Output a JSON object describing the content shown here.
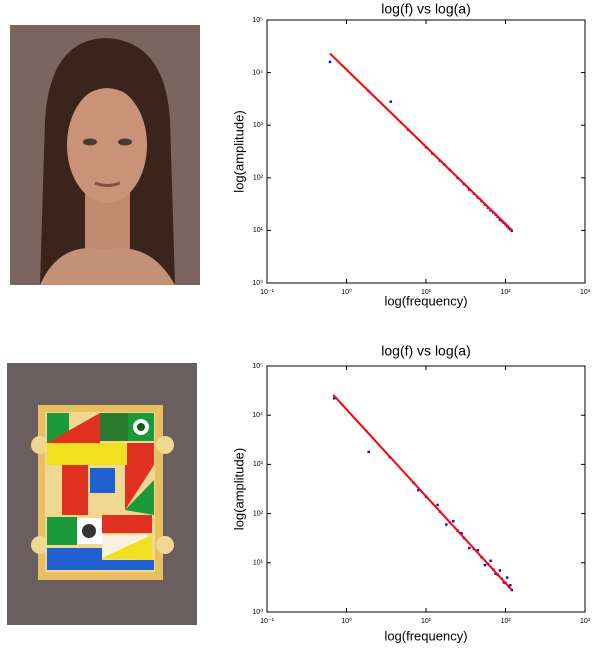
{
  "chart_data": [
    {
      "type": "scatter",
      "title": "log(f) vs log(a)",
      "x_label": "log(frequency)",
      "y_label": "log(amplitude)",
      "log_x": true,
      "log_y": true,
      "xlim": [
        0.1,
        1000
      ],
      "ylim": [
        1,
        100000
      ],
      "xticks": [
        {
          "value": 0.1,
          "label": "10⁻¹"
        },
        {
          "value": 1,
          "label": "10⁰"
        },
        {
          "value": 10,
          "label": "10¹"
        },
        {
          "value": 100,
          "label": "10²"
        },
        {
          "value": 1000,
          "label": "10³"
        }
      ],
      "yticks": [
        {
          "value": 1,
          "label": "10⁰"
        },
        {
          "value": 10,
          "label": "10¹"
        },
        {
          "value": 100,
          "label": "10²"
        },
        {
          "value": 1000,
          "label": "10³"
        },
        {
          "value": 10000,
          "label": "10⁴"
        },
        {
          "value": 100000,
          "label": "10⁵"
        }
      ],
      "series": [
        {
          "type": "scatter",
          "color": "#0000ff",
          "x": [
            0.62,
            1.9,
            3.6,
            6,
            10,
            12,
            15,
            17,
            20,
            25,
            30,
            35,
            40,
            45,
            50,
            55,
            60,
            65,
            70,
            75,
            80,
            85,
            90,
            95,
            100,
            105,
            110,
            115,
            120
          ],
          "values": [
            16000,
            4400,
            2800,
            810,
            380,
            290,
            210,
            180,
            140,
            99,
            76,
            60,
            50,
            42,
            36,
            31,
            27,
            24,
            22,
            20,
            18,
            16,
            15,
            14,
            13,
            12,
            11,
            10.5,
            9.8
          ]
        },
        {
          "type": "line",
          "color": "#ff0000",
          "x": [
            0.62,
            123
          ],
          "values": [
            23000,
            9.8
          ]
        }
      ]
    },
    {
      "type": "scatter",
      "title": "log(f) vs log(a)",
      "x_label": "log(frequency)",
      "y_label": "log(amplitude)",
      "log_x": true,
      "log_y": true,
      "xlim": [
        0.1,
        1000
      ],
      "ylim": [
        1,
        100000
      ],
      "xticks": [
        {
          "value": 0.1,
          "label": "10⁻¹"
        },
        {
          "value": 1,
          "label": "10⁰"
        },
        {
          "value": 10,
          "label": "10¹"
        },
        {
          "value": 100,
          "label": "10²"
        },
        {
          "value": 1000,
          "label": "10³"
        }
      ],
      "yticks": [
        {
          "value": 1,
          "label": "10⁰"
        },
        {
          "value": 10,
          "label": "10¹"
        },
        {
          "value": 100,
          "label": "10²"
        },
        {
          "value": 1000,
          "label": "10³"
        },
        {
          "value": 10000,
          "label": "10⁴"
        },
        {
          "value": 100000,
          "label": "10⁵"
        }
      ],
      "series": [
        {
          "type": "scatter",
          "color": "#0000ff",
          "x": [
            0.7,
            1.9,
            3.5,
            7,
            8,
            10,
            14,
            15,
            18,
            20,
            22,
            25,
            28,
            30,
            35,
            40,
            45,
            50,
            55,
            60,
            65,
            70,
            75,
            80,
            85,
            90,
            95,
            100,
            105,
            110,
            115,
            120
          ],
          "values": [
            22000,
            1800,
            1400,
            420,
            300,
            220,
            150,
            110,
            60,
            66,
            70,
            45,
            40,
            32,
            20,
            19,
            18,
            13,
            9,
            9.5,
            11,
            7.3,
            6,
            5.7,
            7,
            4.7,
            4,
            3.9,
            5,
            3.3,
            3.5,
            2.8
          ]
        },
        {
          "type": "line",
          "color": "#ff0000",
          "x": [
            0.68,
            120
          ],
          "values": [
            26000,
            2.8
          ]
        }
      ]
    }
  ]
}
